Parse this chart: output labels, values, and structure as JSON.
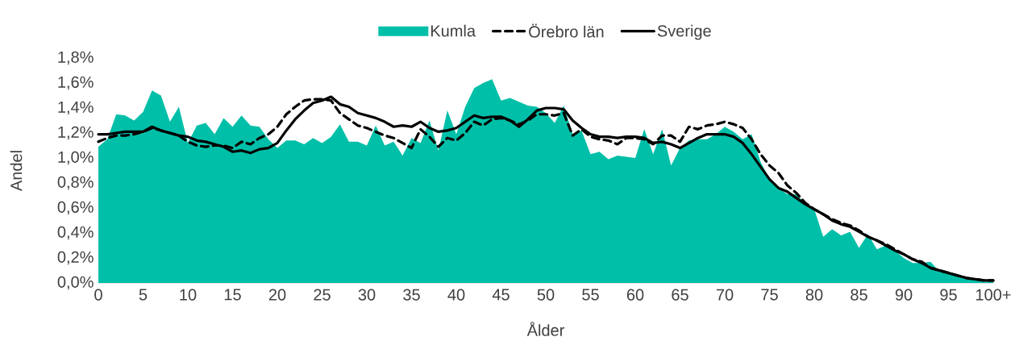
{
  "chart_data": {
    "type": "area",
    "xlabel": "Ålder",
    "ylabel": "Andel",
    "legend": "top",
    "categories": [
      "0",
      null,
      null,
      null,
      null,
      "5",
      null,
      null,
      null,
      null,
      "10",
      null,
      null,
      null,
      null,
      "15",
      null,
      null,
      null,
      null,
      "20",
      null,
      null,
      null,
      null,
      "25",
      null,
      null,
      null,
      null,
      "30",
      null,
      null,
      null,
      null,
      "35",
      null,
      null,
      null,
      null,
      "40",
      null,
      null,
      null,
      null,
      "45",
      null,
      null,
      null,
      null,
      "50",
      null,
      null,
      null,
      null,
      "55",
      null,
      null,
      null,
      null,
      "60",
      null,
      null,
      null,
      null,
      "65",
      null,
      null,
      null,
      null,
      "70",
      null,
      null,
      null,
      null,
      "75",
      null,
      null,
      null,
      null,
      "80",
      null,
      null,
      null,
      null,
      "85",
      null,
      null,
      null,
      null,
      "90",
      null,
      null,
      null,
      null,
      "95",
      null,
      null,
      null,
      null,
      "100+"
    ],
    "ylim": [
      0,
      1.8
    ],
    "yticks": [
      {
        "value": 0,
        "label": "0,0%"
      },
      {
        "value": 0.2,
        "label": "0,2%"
      },
      {
        "value": 0.4,
        "label": "0,4%"
      },
      {
        "value": 0.6,
        "label": "0,6%"
      },
      {
        "value": 0.8,
        "label": "0,8%"
      },
      {
        "value": 1.0,
        "label": "1,0%"
      },
      {
        "value": 1.2,
        "label": "1,2%"
      },
      {
        "value": 1.4,
        "label": "1,4%"
      },
      {
        "value": 1.6,
        "label": "1,6%"
      },
      {
        "value": 1.8,
        "label": "1,8%"
      }
    ],
    "series": [
      {
        "name": "Kumla",
        "color": "#00bfa8",
        "values": [
          1.09,
          1.15,
          1.35,
          1.34,
          1.3,
          1.37,
          1.54,
          1.5,
          1.29,
          1.41,
          1.12,
          1.26,
          1.28,
          1.19,
          1.32,
          1.25,
          1.34,
          1.26,
          1.25,
          1.15,
          1.08,
          1.14,
          1.14,
          1.11,
          1.16,
          1.12,
          1.17,
          1.27,
          1.13,
          1.13,
          1.1,
          1.26,
          1.1,
          1.13,
          1.02,
          1.16,
          1.12,
          1.3,
          1.06,
          1.38,
          1.19,
          1.41,
          1.56,
          1.6,
          1.63,
          1.46,
          1.48,
          1.45,
          1.42,
          1.41,
          1.36,
          1.28,
          1.42,
          1.19,
          1.22,
          1.03,
          1.05,
          0.99,
          1.02,
          1.01,
          1.0,
          1.23,
          1.03,
          1.23,
          0.94,
          1.08,
          1.14,
          1.15,
          1.15,
          1.19,
          1.25,
          1.21,
          1.15,
          1.19,
          0.97,
          0.83,
          0.76,
          0.71,
          0.71,
          0.63,
          0.59,
          0.37,
          0.43,
          0.38,
          0.41,
          0.28,
          0.39,
          0.27,
          0.3,
          0.26,
          0.2,
          0.16,
          0.16,
          0.17,
          0.09,
          0.08,
          0.06,
          0.04,
          0.02,
          0.01,
          0.01
        ]
      },
      {
        "name": "Örebro län",
        "type": "line",
        "line_style": "dashed",
        "color": "#000000",
        "values": [
          1.13,
          1.16,
          1.18,
          1.18,
          1.19,
          1.21,
          1.24,
          1.22,
          1.2,
          1.18,
          1.13,
          1.1,
          1.09,
          1.1,
          1.1,
          1.08,
          1.13,
          1.11,
          1.16,
          1.19,
          1.25,
          1.35,
          1.41,
          1.46,
          1.47,
          1.47,
          1.46,
          1.36,
          1.31,
          1.26,
          1.24,
          1.21,
          1.18,
          1.16,
          1.12,
          1.08,
          1.23,
          1.17,
          1.09,
          1.16,
          1.14,
          1.2,
          1.29,
          1.26,
          1.31,
          1.32,
          1.3,
          1.27,
          1.3,
          1.35,
          1.35,
          1.34,
          1.36,
          1.18,
          1.23,
          1.17,
          1.15,
          1.14,
          1.11,
          1.16,
          1.16,
          1.15,
          1.11,
          1.18,
          1.18,
          1.13,
          1.25,
          1.23,
          1.26,
          1.27,
          1.29,
          1.27,
          1.24,
          1.15,
          1.03,
          0.94,
          0.88,
          0.78,
          0.72,
          0.64,
          0.59,
          0.55,
          0.51,
          0.48,
          0.46,
          0.42,
          0.37,
          0.34,
          0.31,
          0.27,
          0.23,
          0.19,
          0.17,
          0.12,
          0.1,
          0.08,
          0.06,
          0.04,
          0.03,
          0.02,
          0.02
        ]
      },
      {
        "name": "Sverige",
        "type": "line",
        "line_style": "solid",
        "color": "#000000",
        "values": [
          1.19,
          1.19,
          1.2,
          1.21,
          1.21,
          1.21,
          1.25,
          1.22,
          1.2,
          1.18,
          1.17,
          1.14,
          1.13,
          1.11,
          1.09,
          1.05,
          1.06,
          1.04,
          1.07,
          1.08,
          1.12,
          1.22,
          1.31,
          1.38,
          1.44,
          1.46,
          1.49,
          1.43,
          1.41,
          1.36,
          1.34,
          1.32,
          1.29,
          1.25,
          1.26,
          1.25,
          1.29,
          1.24,
          1.21,
          1.22,
          1.24,
          1.29,
          1.34,
          1.32,
          1.33,
          1.33,
          1.3,
          1.25,
          1.31,
          1.38,
          1.4,
          1.4,
          1.39,
          1.3,
          1.24,
          1.19,
          1.17,
          1.17,
          1.16,
          1.17,
          1.17,
          1.16,
          1.12,
          1.13,
          1.11,
          1.08,
          1.12,
          1.16,
          1.19,
          1.19,
          1.19,
          1.17,
          1.12,
          1.03,
          0.93,
          0.83,
          0.76,
          0.73,
          0.68,
          0.63,
          0.59,
          0.55,
          0.5,
          0.47,
          0.45,
          0.41,
          0.37,
          0.34,
          0.3,
          0.26,
          0.23,
          0.19,
          0.16,
          0.12,
          0.1,
          0.08,
          0.06,
          0.04,
          0.03,
          0.02,
          0.02
        ]
      }
    ]
  }
}
